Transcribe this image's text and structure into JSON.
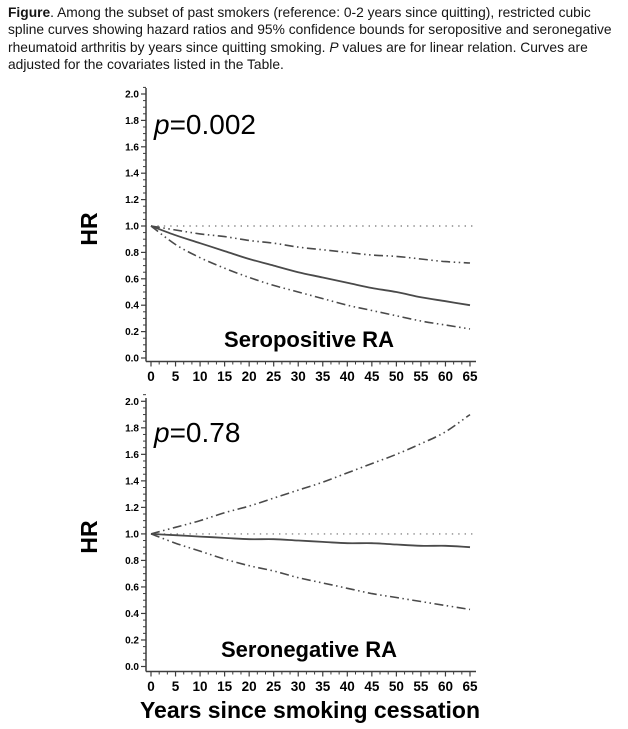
{
  "caption": {
    "lead": "Figure",
    "body_before_p": ". Among the subset of past smokers (reference: 0-2 years since quitting), restricted cubic spline curves showing hazard ratios and 95% confidence bounds for seropositive and seronegative rheumatoid arthritis by years since quitting smoking. ",
    "p_italic": "P",
    "body_after_p": " values are for linear relation. Curves are adjusted for the covariates listed in the Table."
  },
  "figure": {
    "xlabel": "Years since smoking cessation",
    "ylabel": "HR",
    "colors": {
      "curve": "#4a4a4a",
      "reference": "#8a8a8a",
      "axis": "#3d3d3d",
      "text": "#000000",
      "background": "#ffffff"
    }
  },
  "chart_data": [
    {
      "type": "line",
      "panel_label": "Seropositive RA",
      "p_value_label": "p=0.002",
      "ylabel": "HR",
      "xlim": [
        0,
        65
      ],
      "ylim": [
        0.0,
        2.0
      ],
      "grid": false,
      "legend": "none",
      "xticks": [
        0,
        5,
        10,
        15,
        20,
        25,
        30,
        35,
        40,
        45,
        50,
        55,
        60,
        65
      ],
      "yticks": [
        "0.0",
        "0.2",
        "0.4",
        "0.6",
        "0.8",
        "1.0",
        "1.2",
        "1.4",
        "1.6",
        "1.8",
        "2.0"
      ],
      "reference_line_y": 1.0,
      "x": [
        0,
        5,
        10,
        15,
        20,
        25,
        30,
        35,
        40,
        45,
        50,
        55,
        60,
        65
      ],
      "series": [
        {
          "name": "Hazard ratio",
          "line_style": "solid",
          "values": [
            1.0,
            0.93,
            0.87,
            0.81,
            0.75,
            0.7,
            0.65,
            0.61,
            0.57,
            0.53,
            0.5,
            0.46,
            0.43,
            0.4
          ]
        },
        {
          "name": "Upper 95% confidence bound",
          "line_style": "dash-dot-dot",
          "values": [
            1.0,
            0.97,
            0.94,
            0.92,
            0.89,
            0.87,
            0.84,
            0.82,
            0.8,
            0.78,
            0.77,
            0.75,
            0.73,
            0.72
          ]
        },
        {
          "name": "Lower 95% confidence bound",
          "line_style": "dash-dot-dot",
          "values": [
            1.0,
            0.86,
            0.76,
            0.68,
            0.61,
            0.55,
            0.5,
            0.45,
            0.4,
            0.36,
            0.32,
            0.28,
            0.25,
            0.22
          ]
        }
      ]
    },
    {
      "type": "line",
      "panel_label": "Seronegative RA",
      "p_value_label": "p=0.78",
      "ylabel": "HR",
      "xlim": [
        0,
        65
      ],
      "ylim": [
        0.0,
        2.0
      ],
      "grid": false,
      "legend": "none",
      "xticks": [
        0,
        5,
        10,
        15,
        20,
        25,
        30,
        35,
        40,
        45,
        50,
        55,
        60,
        65
      ],
      "yticks": [
        "0.0",
        "0.2",
        "0.4",
        "0.6",
        "0.8",
        "1.0",
        "1.2",
        "1.4",
        "1.6",
        "1.8",
        "2.0"
      ],
      "reference_line_y": 1.0,
      "x": [
        0,
        5,
        10,
        15,
        20,
        25,
        30,
        35,
        40,
        45,
        50,
        55,
        60,
        65
      ],
      "series": [
        {
          "name": "Hazard ratio",
          "line_style": "solid",
          "values": [
            1.0,
            0.99,
            0.98,
            0.97,
            0.96,
            0.96,
            0.95,
            0.94,
            0.93,
            0.93,
            0.92,
            0.91,
            0.91,
            0.9
          ]
        },
        {
          "name": "Upper 95% confidence bound",
          "line_style": "dash-dot-dot",
          "values": [
            1.0,
            1.05,
            1.1,
            1.16,
            1.21,
            1.27,
            1.33,
            1.39,
            1.46,
            1.53,
            1.6,
            1.68,
            1.77,
            1.9
          ]
        },
        {
          "name": "Lower 95% confidence bound",
          "line_style": "dash-dot-dot",
          "values": [
            1.0,
            0.93,
            0.87,
            0.81,
            0.76,
            0.72,
            0.67,
            0.63,
            0.59,
            0.55,
            0.52,
            0.49,
            0.46,
            0.43
          ]
        }
      ]
    }
  ]
}
